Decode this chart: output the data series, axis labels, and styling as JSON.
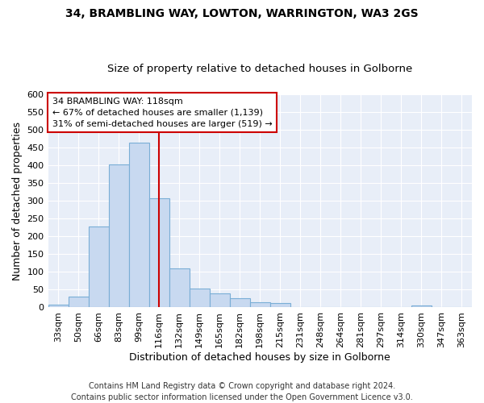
{
  "title1": "34, BRAMBLING WAY, LOWTON, WARRINGTON, WA3 2GS",
  "title2": "Size of property relative to detached houses in Golborne",
  "xlabel": "Distribution of detached houses by size in Golborne",
  "ylabel": "Number of detached properties",
  "categories": [
    "33sqm",
    "50sqm",
    "66sqm",
    "83sqm",
    "99sqm",
    "116sqm",
    "132sqm",
    "149sqm",
    "165sqm",
    "182sqm",
    "198sqm",
    "215sqm",
    "231sqm",
    "248sqm",
    "264sqm",
    "281sqm",
    "297sqm",
    "314sqm",
    "330sqm",
    "347sqm",
    "363sqm"
  ],
  "values": [
    7,
    30,
    228,
    403,
    464,
    307,
    110,
    54,
    39,
    26,
    15,
    13,
    0,
    0,
    0,
    0,
    0,
    0,
    5,
    0,
    0
  ],
  "bar_color": "#c8d9f0",
  "bar_edgecolor": "#7aaed6",
  "bar_linewidth": 0.8,
  "vline_x": 5.0,
  "vline_color": "#cc0000",
  "annotation_line1": "34 BRAMBLING WAY: 118sqm",
  "annotation_line2": "← 67% of detached houses are smaller (1,139)",
  "annotation_line3": "31% of semi-detached houses are larger (519) →",
  "annotation_box_color": "#ffffff",
  "annotation_box_edgecolor": "#cc0000",
  "ylim": [
    0,
    600
  ],
  "yticks": [
    0,
    50,
    100,
    150,
    200,
    250,
    300,
    350,
    400,
    450,
    500,
    550,
    600
  ],
  "footer1": "Contains HM Land Registry data © Crown copyright and database right 2024.",
  "footer2": "Contains public sector information licensed under the Open Government Licence v3.0.",
  "fig_bg_color": "#ffffff",
  "plot_bg_color": "#e8eef8",
  "grid_color": "#ffffff",
  "title1_fontsize": 10,
  "title2_fontsize": 9.5,
  "axis_label_fontsize": 9,
  "tick_fontsize": 8,
  "footer_fontsize": 7,
  "annotation_fontsize": 8
}
